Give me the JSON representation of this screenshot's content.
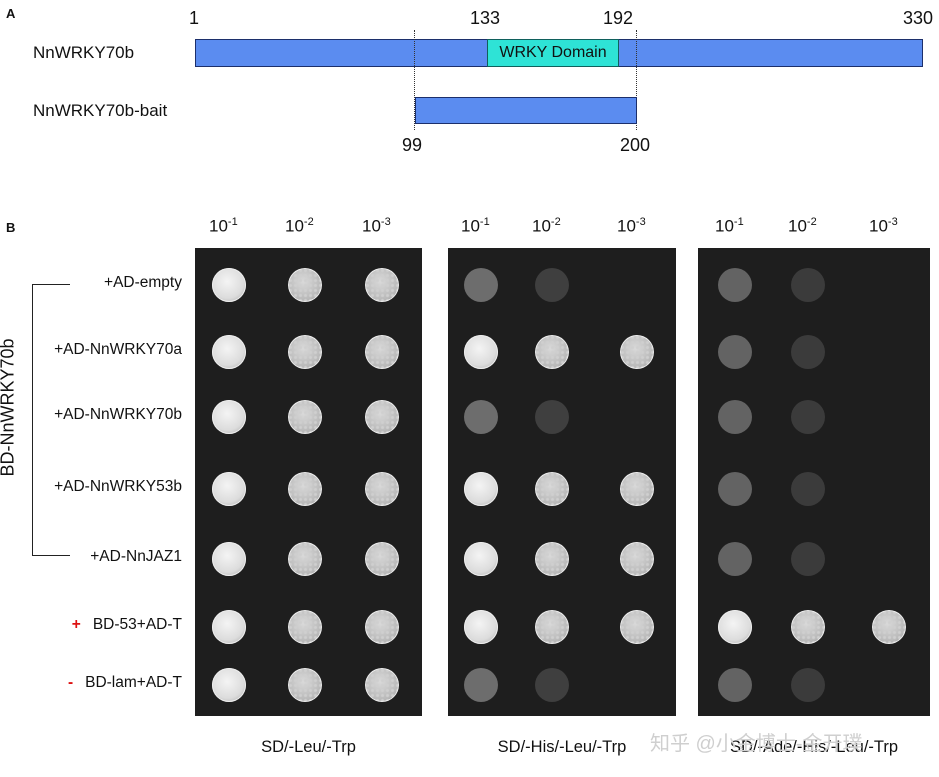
{
  "panel_a": {
    "letter": "A",
    "protein_label": "NnWRKY70b",
    "bait_label": "NnWRKY70b-bait",
    "domain_label": "WRKY Domain",
    "positions": {
      "start": "1",
      "domain_start": "133",
      "domain_end": "192",
      "end": "330",
      "bait_start": "99",
      "bait_end": "200"
    }
  },
  "panel_b": {
    "letter": "B",
    "group_label": "BD-NnWRKY70b",
    "dilutions": [
      {
        "base": "10",
        "exp": "-1"
      },
      {
        "base": "10",
        "exp": "-2"
      },
      {
        "base": "10",
        "exp": "-3"
      }
    ],
    "rows": [
      {
        "label": "+AD-empty",
        "sign": ""
      },
      {
        "label": "+AD-NnWRKY70a",
        "sign": ""
      },
      {
        "label": "+AD-NnWRKY70b",
        "sign": ""
      },
      {
        "label": "+AD-NnWRKY53b",
        "sign": ""
      },
      {
        "label": "+AD-NnJAZ1",
        "sign": ""
      },
      {
        "label": "BD-53+AD-T",
        "sign": "+"
      },
      {
        "label": "BD-lam+AD-T",
        "sign": "-"
      }
    ],
    "plates": [
      {
        "medium": "SD/-Leu/-Trp",
        "growth": [
          [
            1,
            1,
            1
          ],
          [
            1,
            1,
            1
          ],
          [
            1,
            1,
            1
          ],
          [
            1,
            1,
            1
          ],
          [
            1,
            1,
            1
          ],
          [
            1,
            1,
            1
          ],
          [
            1,
            1,
            1
          ]
        ]
      },
      {
        "medium": "SD/-His/-Leu/-Trp",
        "growth": [
          [
            0.35,
            0.12,
            0
          ],
          [
            1,
            1,
            1
          ],
          [
            0.35,
            0.12,
            0
          ],
          [
            1,
            1,
            1
          ],
          [
            1,
            1,
            1
          ],
          [
            1,
            1,
            1
          ],
          [
            0.35,
            0.12,
            0
          ]
        ]
      },
      {
        "medium": "SD/-Ade/-His/-Leu/-Trp",
        "growth": [
          [
            0.3,
            0.1,
            0
          ],
          [
            0.3,
            0.1,
            0
          ],
          [
            0.3,
            0.1,
            0
          ],
          [
            0.3,
            0.1,
            0
          ],
          [
            0.3,
            0.1,
            0
          ],
          [
            1,
            1,
            1
          ],
          [
            0.3,
            0.1,
            0
          ]
        ]
      }
    ]
  },
  "watermark": "知乎 @小金博士-金开璞"
}
